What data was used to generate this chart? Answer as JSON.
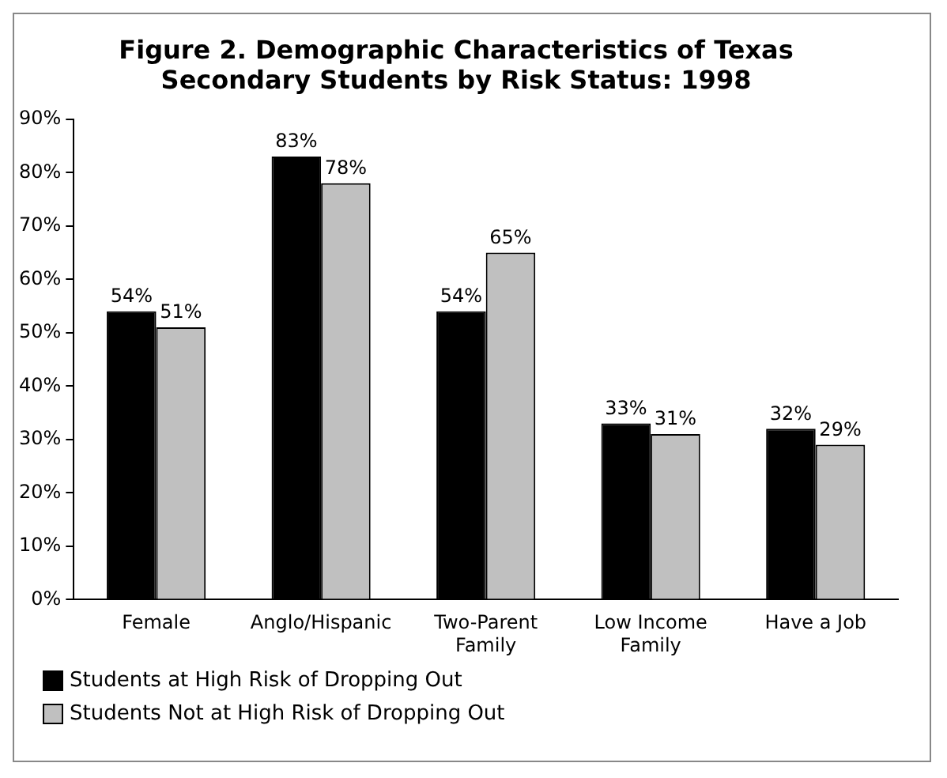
{
  "chart_data": {
    "type": "bar",
    "title": "Figure 2. Demographic Characteristics of Texas Secondary Students by Risk Status: 1998",
    "categories": [
      "Female",
      "Anglo/Hispanic",
      "Two-Parent Family",
      "Low Income Family",
      "Have a Job"
    ],
    "series": [
      {
        "name": "Students at High Risk of Dropping Out",
        "color": "#000000",
        "values": [
          54,
          83,
          54,
          33,
          32
        ],
        "value_labels": [
          "54%",
          "83%",
          "54%",
          "33%",
          "32%"
        ]
      },
      {
        "name": "Students Not at High Risk of Dropping Out",
        "color": "#c0c0c0",
        "values": [
          51,
          78,
          65,
          31,
          29
        ],
        "value_labels": [
          "51%",
          "78%",
          "65%",
          "31%",
          "29%"
        ]
      }
    ],
    "ylim": [
      0,
      90
    ],
    "yticks": [
      {
        "value": 0,
        "label": "0%"
      },
      {
        "value": 10,
        "label": "10%"
      },
      {
        "value": 20,
        "label": "20%"
      },
      {
        "value": 30,
        "label": "30%"
      },
      {
        "value": 40,
        "label": "40%"
      },
      {
        "value": 50,
        "label": "50%"
      },
      {
        "value": 60,
        "label": "60%"
      },
      {
        "value": 70,
        "label": "70%"
      },
      {
        "value": 80,
        "label": "80%"
      },
      {
        "value": 90,
        "label": "90%"
      }
    ],
    "grid": false,
    "legend": "bottom left"
  }
}
